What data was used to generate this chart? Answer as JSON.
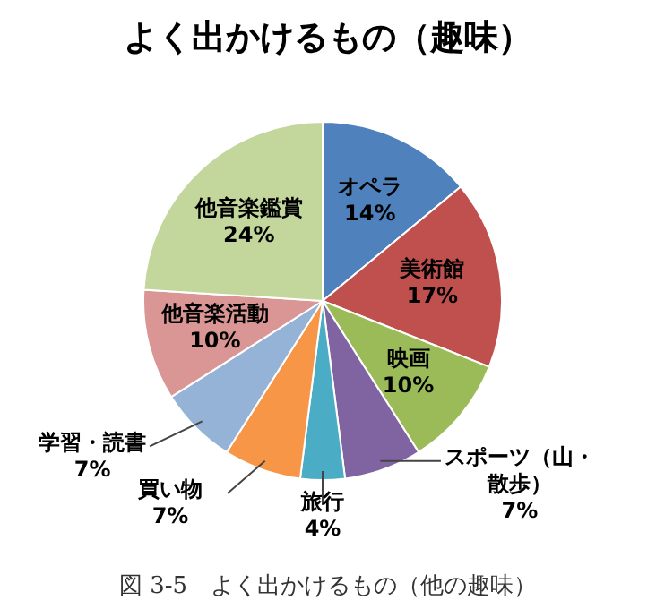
{
  "chart_data": {
    "type": "pie",
    "title": "よく出かけるもの（趣味）",
    "categories": [
      "オペラ",
      "美術館",
      "映画",
      "スポーツ（山・散歩）",
      "旅行",
      "買い物",
      "学習・読書",
      "他音楽活動",
      "他音楽鑑賞"
    ],
    "values": [
      14,
      17,
      10,
      7,
      4,
      7,
      7,
      10,
      24
    ],
    "colors": [
      "#4f81bd",
      "#c0504d",
      "#9bbb59",
      "#8064a2",
      "#4bacc6",
      "#f79646",
      "#95b3d7",
      "#d99694",
      "#c3d69b"
    ],
    "value_labels": [
      "14%",
      "17%",
      "10%",
      "7%",
      "4%",
      "7%",
      "7%",
      "10%",
      "24%"
    ],
    "annotations": [
      "図 3-5　よく出かけるもの（他の趣味）"
    ]
  }
}
